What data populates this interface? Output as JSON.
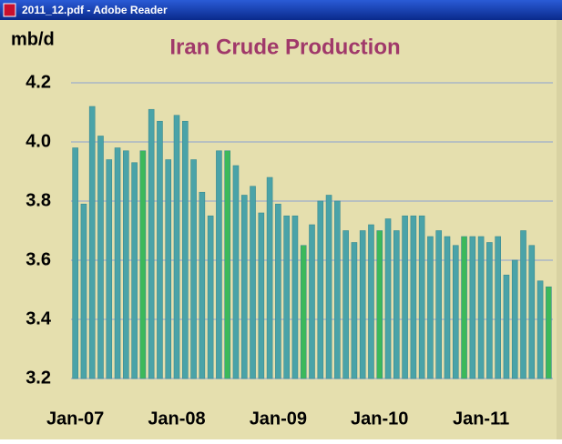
{
  "window_title": "2011_12.pdf - Adobe Reader",
  "chart_data": {
    "type": "bar",
    "title": "Iran Crude Production",
    "y_label": "mb/d",
    "categories": [
      "Jan-07",
      null,
      null,
      null,
      null,
      null,
      null,
      null,
      null,
      null,
      null,
      null,
      "Jan-08",
      null,
      null,
      null,
      null,
      null,
      null,
      null,
      null,
      null,
      null,
      null,
      "Jan-09",
      null,
      null,
      null,
      null,
      null,
      null,
      null,
      null,
      null,
      null,
      null,
      "Jan-10",
      null,
      null,
      null,
      null,
      null,
      null,
      null,
      null,
      null,
      null,
      null,
      "Jan-11",
      null,
      null,
      null,
      null,
      null,
      null,
      null,
      null
    ],
    "values": [
      3.98,
      3.79,
      4.12,
      4.02,
      3.94,
      3.98,
      3.97,
      3.93,
      3.97,
      4.11,
      4.07,
      3.94,
      4.09,
      4.07,
      3.94,
      3.83,
      3.75,
      3.97,
      3.97,
      3.92,
      3.82,
      3.85,
      3.76,
      3.88,
      3.79,
      3.75,
      3.75,
      3.65,
      3.72,
      3.8,
      3.82,
      3.8,
      3.7,
      3.66,
      3.7,
      3.72,
      3.7,
      3.74,
      3.7,
      3.75,
      3.75,
      3.75,
      3.68,
      3.7,
      3.68,
      3.65,
      3.68,
      3.68,
      3.68,
      3.66,
      3.68,
      3.55,
      3.6,
      3.7,
      3.65,
      3.53,
      3.51
    ],
    "colors": [
      "#4aa3a8",
      "#4aa3a8",
      "#4aa3a8",
      "#4aa3a8",
      "#4aa3a8",
      "#4aa3a8",
      "#4aa3a8",
      "#4aa3a8",
      "#3cb95a",
      "#4aa3a8",
      "#4aa3a8",
      "#4aa3a8",
      "#4aa3a8",
      "#4aa3a8",
      "#4aa3a8",
      "#4aa3a8",
      "#4aa3a8",
      "#4aa3a8",
      "#3cb95a",
      "#4aa3a8",
      "#4aa3a8",
      "#4aa3a8",
      "#4aa3a8",
      "#4aa3a8",
      "#4aa3a8",
      "#4aa3a8",
      "#4aa3a8",
      "#3cb95a",
      "#4aa3a8",
      "#4aa3a8",
      "#4aa3a8",
      "#4aa3a8",
      "#4aa3a8",
      "#4aa3a8",
      "#4aa3a8",
      "#4aa3a8",
      "#3cb95a",
      "#4aa3a8",
      "#4aa3a8",
      "#4aa3a8",
      "#4aa3a8",
      "#4aa3a8",
      "#4aa3a8",
      "#4aa3a8",
      "#4aa3a8",
      "#4aa3a8",
      "#3cb95a",
      "#4aa3a8",
      "#4aa3a8",
      "#4aa3a8",
      "#4aa3a8",
      "#4aa3a8",
      "#4aa3a8",
      "#4aa3a8",
      "#4aa3a8",
      "#4aa3a8",
      "#3cb95a"
    ],
    "ylim": [
      3.2,
      4.2
    ],
    "yticks": [
      3.2,
      3.4,
      3.6,
      3.8,
      {
        "value": 4,
        "label": "4.0"
      },
      4.2
    ],
    "grid": true
  }
}
